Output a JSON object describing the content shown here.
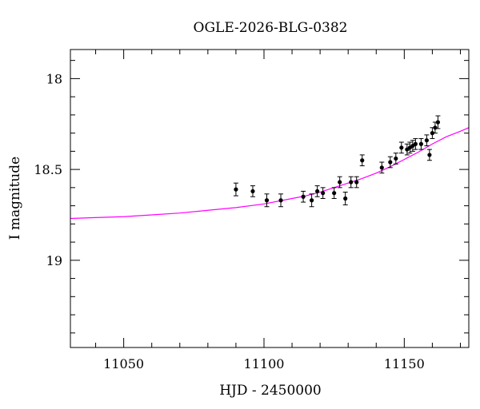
{
  "chart_data": {
    "type": "scatter",
    "title": "OGLE-2026-BLG-0382",
    "xlabel": "HJD - 2450000",
    "ylabel": "I magnitude",
    "xlim": [
      11031,
      11173
    ],
    "ylim": [
      19.48,
      17.84
    ],
    "y_inverted": true,
    "grid": false,
    "x_ticks": [
      11050,
      11100,
      11150
    ],
    "x_tick_labels": [
      "11050",
      "11100",
      "11150"
    ],
    "y_ticks": [
      18,
      18.5,
      19
    ],
    "y_tick_labels": [
      "18",
      "18.5",
      "19"
    ],
    "colors": {
      "model": "#ff00ff",
      "points": "#000000"
    },
    "series": [
      {
        "type": "errorbar",
        "x": [
          11090,
          11096,
          11101,
          11106,
          11114,
          11117,
          11119,
          11121,
          11125,
          11127,
          11129,
          11131,
          11133,
          11135,
          11142,
          11145,
          11147,
          11149,
          11151,
          11152,
          11153,
          11154,
          11156,
          11158,
          11159,
          11160,
          11161,
          11162
        ],
        "y": [
          18.61,
          18.62,
          18.67,
          18.67,
          18.65,
          18.67,
          18.62,
          18.63,
          18.63,
          18.57,
          18.66,
          18.57,
          18.57,
          18.45,
          18.49,
          18.46,
          18.44,
          18.38,
          18.39,
          18.38,
          18.37,
          18.36,
          18.36,
          18.34,
          18.42,
          18.3,
          18.27,
          18.24
        ],
        "yerr": [
          0.035,
          0.03,
          0.035,
          0.035,
          0.03,
          0.035,
          0.03,
          0.03,
          0.03,
          0.03,
          0.035,
          0.03,
          0.03,
          0.03,
          0.03,
          0.03,
          0.03,
          0.03,
          0.03,
          0.03,
          0.03,
          0.03,
          0.03,
          0.03,
          0.03,
          0.03,
          0.03,
          0.035
        ]
      },
      {
        "type": "line",
        "x": [
          11031,
          11040,
          11050,
          11060,
          11070,
          11080,
          11090,
          11100,
          11110,
          11115,
          11120,
          11125,
          11130,
          11135,
          11140,
          11145,
          11150,
          11155,
          11160,
          11165,
          11170,
          11173
        ],
        "y": [
          18.77,
          18.765,
          18.76,
          18.75,
          18.74,
          18.725,
          18.71,
          18.69,
          18.66,
          18.645,
          18.625,
          18.6,
          18.575,
          18.55,
          18.52,
          18.485,
          18.445,
          18.405,
          18.36,
          18.32,
          18.29,
          18.27
        ]
      }
    ]
  }
}
